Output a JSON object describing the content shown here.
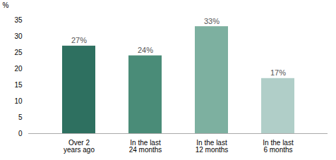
{
  "chart_data": {
    "type": "bar",
    "categories": [
      "Over 2\nyears ago",
      "In the last\n24 months",
      "In the last\n12 months",
      "In the last\n6 months"
    ],
    "values": [
      27,
      24,
      33,
      17
    ],
    "value_labels": [
      "27%",
      "24%",
      "33%",
      "17%"
    ],
    "colors": [
      "#2e7060",
      "#4a8c78",
      "#7db0a0",
      "#b0cec8"
    ],
    "ylabel": "%",
    "ylim": [
      0,
      35
    ],
    "yticks": [
      0,
      5,
      10,
      15,
      20,
      25,
      30,
      35
    ],
    "grid": false,
    "data_labels": true
  }
}
